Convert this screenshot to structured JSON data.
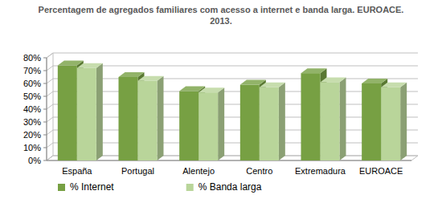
{
  "chart_data": {
    "type": "bar",
    "title": "Percentagem de agregados familiares com acesso a internet e banda larga. EUROACE. 2013.",
    "categories": [
      "España",
      "Portugal",
      "Alentejo",
      "Centro",
      "Extremadura",
      "EUROACE"
    ],
    "series": [
      {
        "name": "% Internet",
        "color": "#77a043",
        "values": [
          74,
          65,
          54,
          59,
          68,
          60
        ]
      },
      {
        "name": "% Banda larga",
        "color": "#b9d59a",
        "values": [
          72,
          62,
          53,
          57,
          61,
          57
        ]
      }
    ],
    "ylim": [
      0,
      80
    ],
    "yticks": [
      {
        "value": 0,
        "label": "0%"
      },
      {
        "value": 10,
        "label": "10%"
      },
      {
        "value": 20,
        "label": "20%"
      },
      {
        "value": 30,
        "label": "30%"
      },
      {
        "value": 40,
        "label": "40%"
      },
      {
        "value": 50,
        "label": "50%"
      },
      {
        "value": 60,
        "label": "60%"
      },
      {
        "value": 70,
        "label": "70%"
      },
      {
        "value": 80,
        "label": "80%"
      }
    ],
    "grid": true,
    "legend": "bottom"
  }
}
